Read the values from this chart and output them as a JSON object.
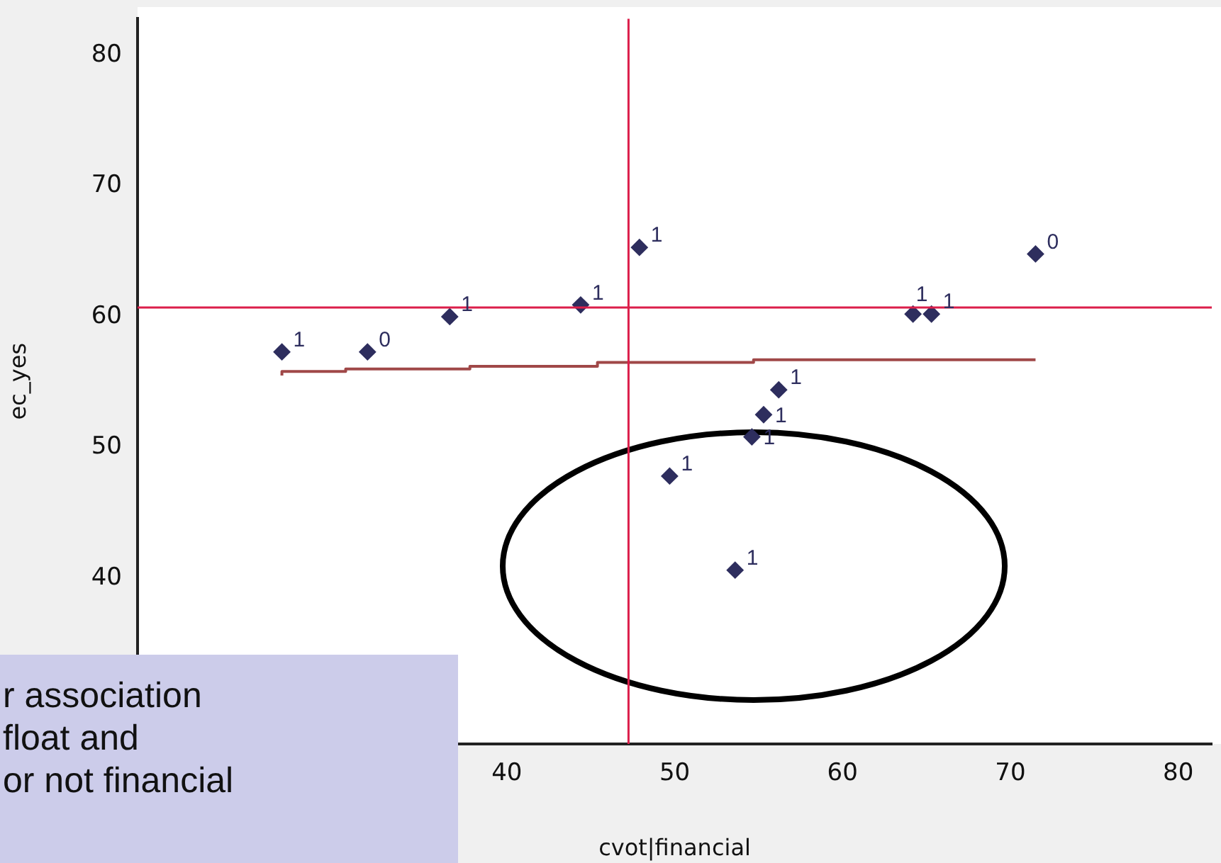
{
  "chart_data": {
    "type": "scatter",
    "xlabel": "cvot|financial",
    "ylabel": "ec_yes",
    "xlim": [
      18,
      82
    ],
    "ylim": [
      27.3,
      82.8
    ],
    "xticks": [
      40,
      50,
      60,
      70,
      80
    ],
    "yticks": [
      40,
      50,
      60,
      70,
      80
    ],
    "grid": false,
    "legend": false,
    "series": [
      {
        "color": "#2e2e5e",
        "marker": "diamond",
        "x": [
          26.6,
          31.7,
          36.6,
          44.4,
          47.9,
          64.2,
          65.3,
          71.5,
          56.2,
          55.3,
          54.6,
          49.7,
          53.6
        ],
        "values": [
          57.3,
          57.3,
          60.0,
          60.9,
          65.3,
          60.2,
          60.2,
          64.8,
          54.4,
          52.5,
          50.8,
          47.8,
          40.6
        ]
      },
      {
        "type": "step",
        "color": "#a04848",
        "marker": "none",
        "x": [
          26.6,
          30.4,
          37.8,
          45.4,
          54.7,
          65.8,
          71.5
        ],
        "values": [
          55.5,
          55.8,
          56.0,
          56.2,
          56.5,
          56.7,
          56.7
        ]
      }
    ],
    "ref_lines": [
      {
        "axis": "x",
        "value": 47.25,
        "color": "#dc1e4a"
      },
      {
        "axis": "y",
        "value": 60.7,
        "color": "#dc1e4a"
      }
    ],
    "annotations": [
      {
        "text": "1",
        "x": 26.6,
        "y": 57.3
      },
      {
        "text": "0",
        "x": 31.7,
        "y": 57.3
      },
      {
        "text": "1",
        "x": 36.6,
        "y": 60.0
      },
      {
        "text": "1",
        "x": 44.4,
        "y": 60.9
      },
      {
        "text": "1",
        "x": 47.9,
        "y": 65.3
      },
      {
        "text": "1",
        "x": 64.2,
        "y": 60.2
      },
      {
        "text": "1",
        "x": 65.3,
        "y": 60.2
      },
      {
        "text": "0",
        "x": 71.5,
        "y": 64.8
      },
      {
        "text": "1",
        "x": 56.2,
        "y": 54.4
      },
      {
        "text": "1",
        "x": 55.3,
        "y": 52.5
      },
      {
        "text": "1",
        "x": 54.6,
        "y": 50.8
      },
      {
        "text": "1",
        "x": 49.7,
        "y": 47.8
      },
      {
        "text": "1",
        "x": 53.6,
        "y": 40.6
      },
      "r association",
      "float and",
      "or not financial"
    ]
  }
}
